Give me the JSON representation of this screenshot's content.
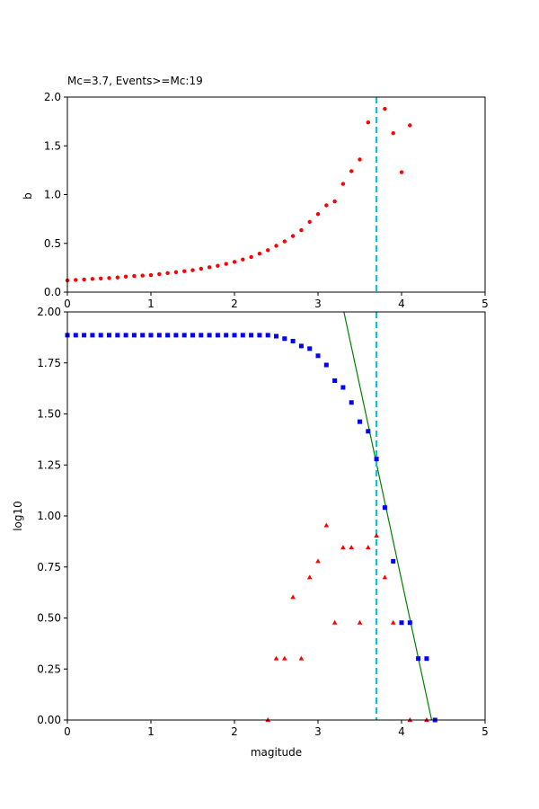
{
  "colors": {
    "b_points": "#ff0000",
    "cumulative": "#0000ff",
    "noncumulative": "#ff0000",
    "fit_line": "#008000",
    "mc_line": "#17becf"
  },
  "chart_data": [
    {
      "type": "scatter",
      "title": "Mc=3.7, Events>=Mc:19",
      "xlabel": "",
      "ylabel": "b",
      "xlim": [
        0,
        5
      ],
      "ylim": [
        0,
        2
      ],
      "xticks": [
        "0",
        "1",
        "2",
        "3",
        "4",
        "5"
      ],
      "yticks": [
        "0.0",
        "0.5",
        "1.0",
        "1.5",
        "2.0"
      ],
      "mc": 3.7,
      "series": [
        {
          "marker": "circle",
          "x": [
            0.0,
            0.1,
            0.2,
            0.3,
            0.4,
            0.5,
            0.6,
            0.7,
            0.8,
            0.9,
            1.0,
            1.1,
            1.2,
            1.3,
            1.4,
            1.5,
            1.6,
            1.7,
            1.8,
            1.9,
            2.0,
            2.1,
            2.2,
            2.3,
            2.4,
            2.5,
            2.6,
            2.7,
            2.8,
            2.9,
            3.0,
            3.1,
            3.2,
            3.3,
            3.4,
            3.5,
            3.6,
            3.8,
            3.9,
            4.0,
            4.1
          ],
          "y": [
            0.12,
            0.125,
            0.13,
            0.135,
            0.14,
            0.145,
            0.15,
            0.16,
            0.165,
            0.17,
            0.175,
            0.185,
            0.195,
            0.205,
            0.215,
            0.225,
            0.24,
            0.255,
            0.27,
            0.29,
            0.31,
            0.335,
            0.36,
            0.395,
            0.43,
            0.475,
            0.52,
            0.575,
            0.635,
            0.72,
            0.8,
            0.89,
            0.93,
            1.11,
            1.24,
            1.36,
            1.74,
            1.88,
            1.63,
            1.23,
            1.71
          ]
        }
      ]
    },
    {
      "type": "scatter",
      "title": "",
      "xlabel": "magitude",
      "ylabel": "log10",
      "xlim": [
        0,
        5
      ],
      "ylim": [
        0,
        2
      ],
      "xticks": [
        "0",
        "1",
        "2",
        "3",
        "4",
        "5"
      ],
      "yticks": [
        "0.00",
        "0.25",
        "0.50",
        "0.75",
        "1.00",
        "1.25",
        "1.50",
        "1.75",
        "2.00"
      ],
      "mc": 3.7,
      "series": [
        {
          "marker": "square",
          "x": [
            0.0,
            0.1,
            0.2,
            0.3,
            0.4,
            0.5,
            0.6,
            0.7,
            0.8,
            0.9,
            1.0,
            1.1,
            1.2,
            1.3,
            1.4,
            1.5,
            1.6,
            1.7,
            1.8,
            1.9,
            2.0,
            2.1,
            2.2,
            2.3,
            2.4,
            2.5,
            2.6,
            2.7,
            2.8,
            2.9,
            3.0,
            3.1,
            3.2,
            3.3,
            3.4,
            3.5,
            3.6,
            3.7,
            3.8,
            3.9,
            4.0,
            4.1,
            4.2,
            4.3,
            4.4
          ],
          "y": [
            1.886,
            1.886,
            1.886,
            1.886,
            1.886,
            1.886,
            1.886,
            1.886,
            1.886,
            1.886,
            1.886,
            1.886,
            1.886,
            1.886,
            1.886,
            1.886,
            1.886,
            1.886,
            1.886,
            1.886,
            1.886,
            1.886,
            1.886,
            1.886,
            1.886,
            1.881,
            1.869,
            1.857,
            1.833,
            1.82,
            1.785,
            1.74,
            1.663,
            1.63,
            1.556,
            1.462,
            1.415,
            1.279,
            1.041,
            0.778,
            0.477,
            0.477,
            0.301,
            0.301,
            0.0
          ]
        },
        {
          "marker": "triangle",
          "x": [
            2.4,
            2.5,
            2.6,
            2.7,
            2.8,
            2.9,
            3.0,
            3.1,
            3.2,
            3.3,
            3.4,
            3.5,
            3.6,
            3.7,
            3.8,
            3.9,
            4.1,
            4.3
          ],
          "y": [
            0.0,
            0.301,
            0.301,
            0.602,
            0.301,
            0.699,
            0.778,
            0.954,
            0.477,
            0.845,
            0.845,
            0.477,
            0.845,
            0.903,
            0.699,
            0.477,
            0.0,
            0.0
          ]
        }
      ],
      "fit": {
        "x": [
          3.31,
          4.36
        ],
        "y": [
          2.0,
          0.0
        ]
      }
    }
  ]
}
